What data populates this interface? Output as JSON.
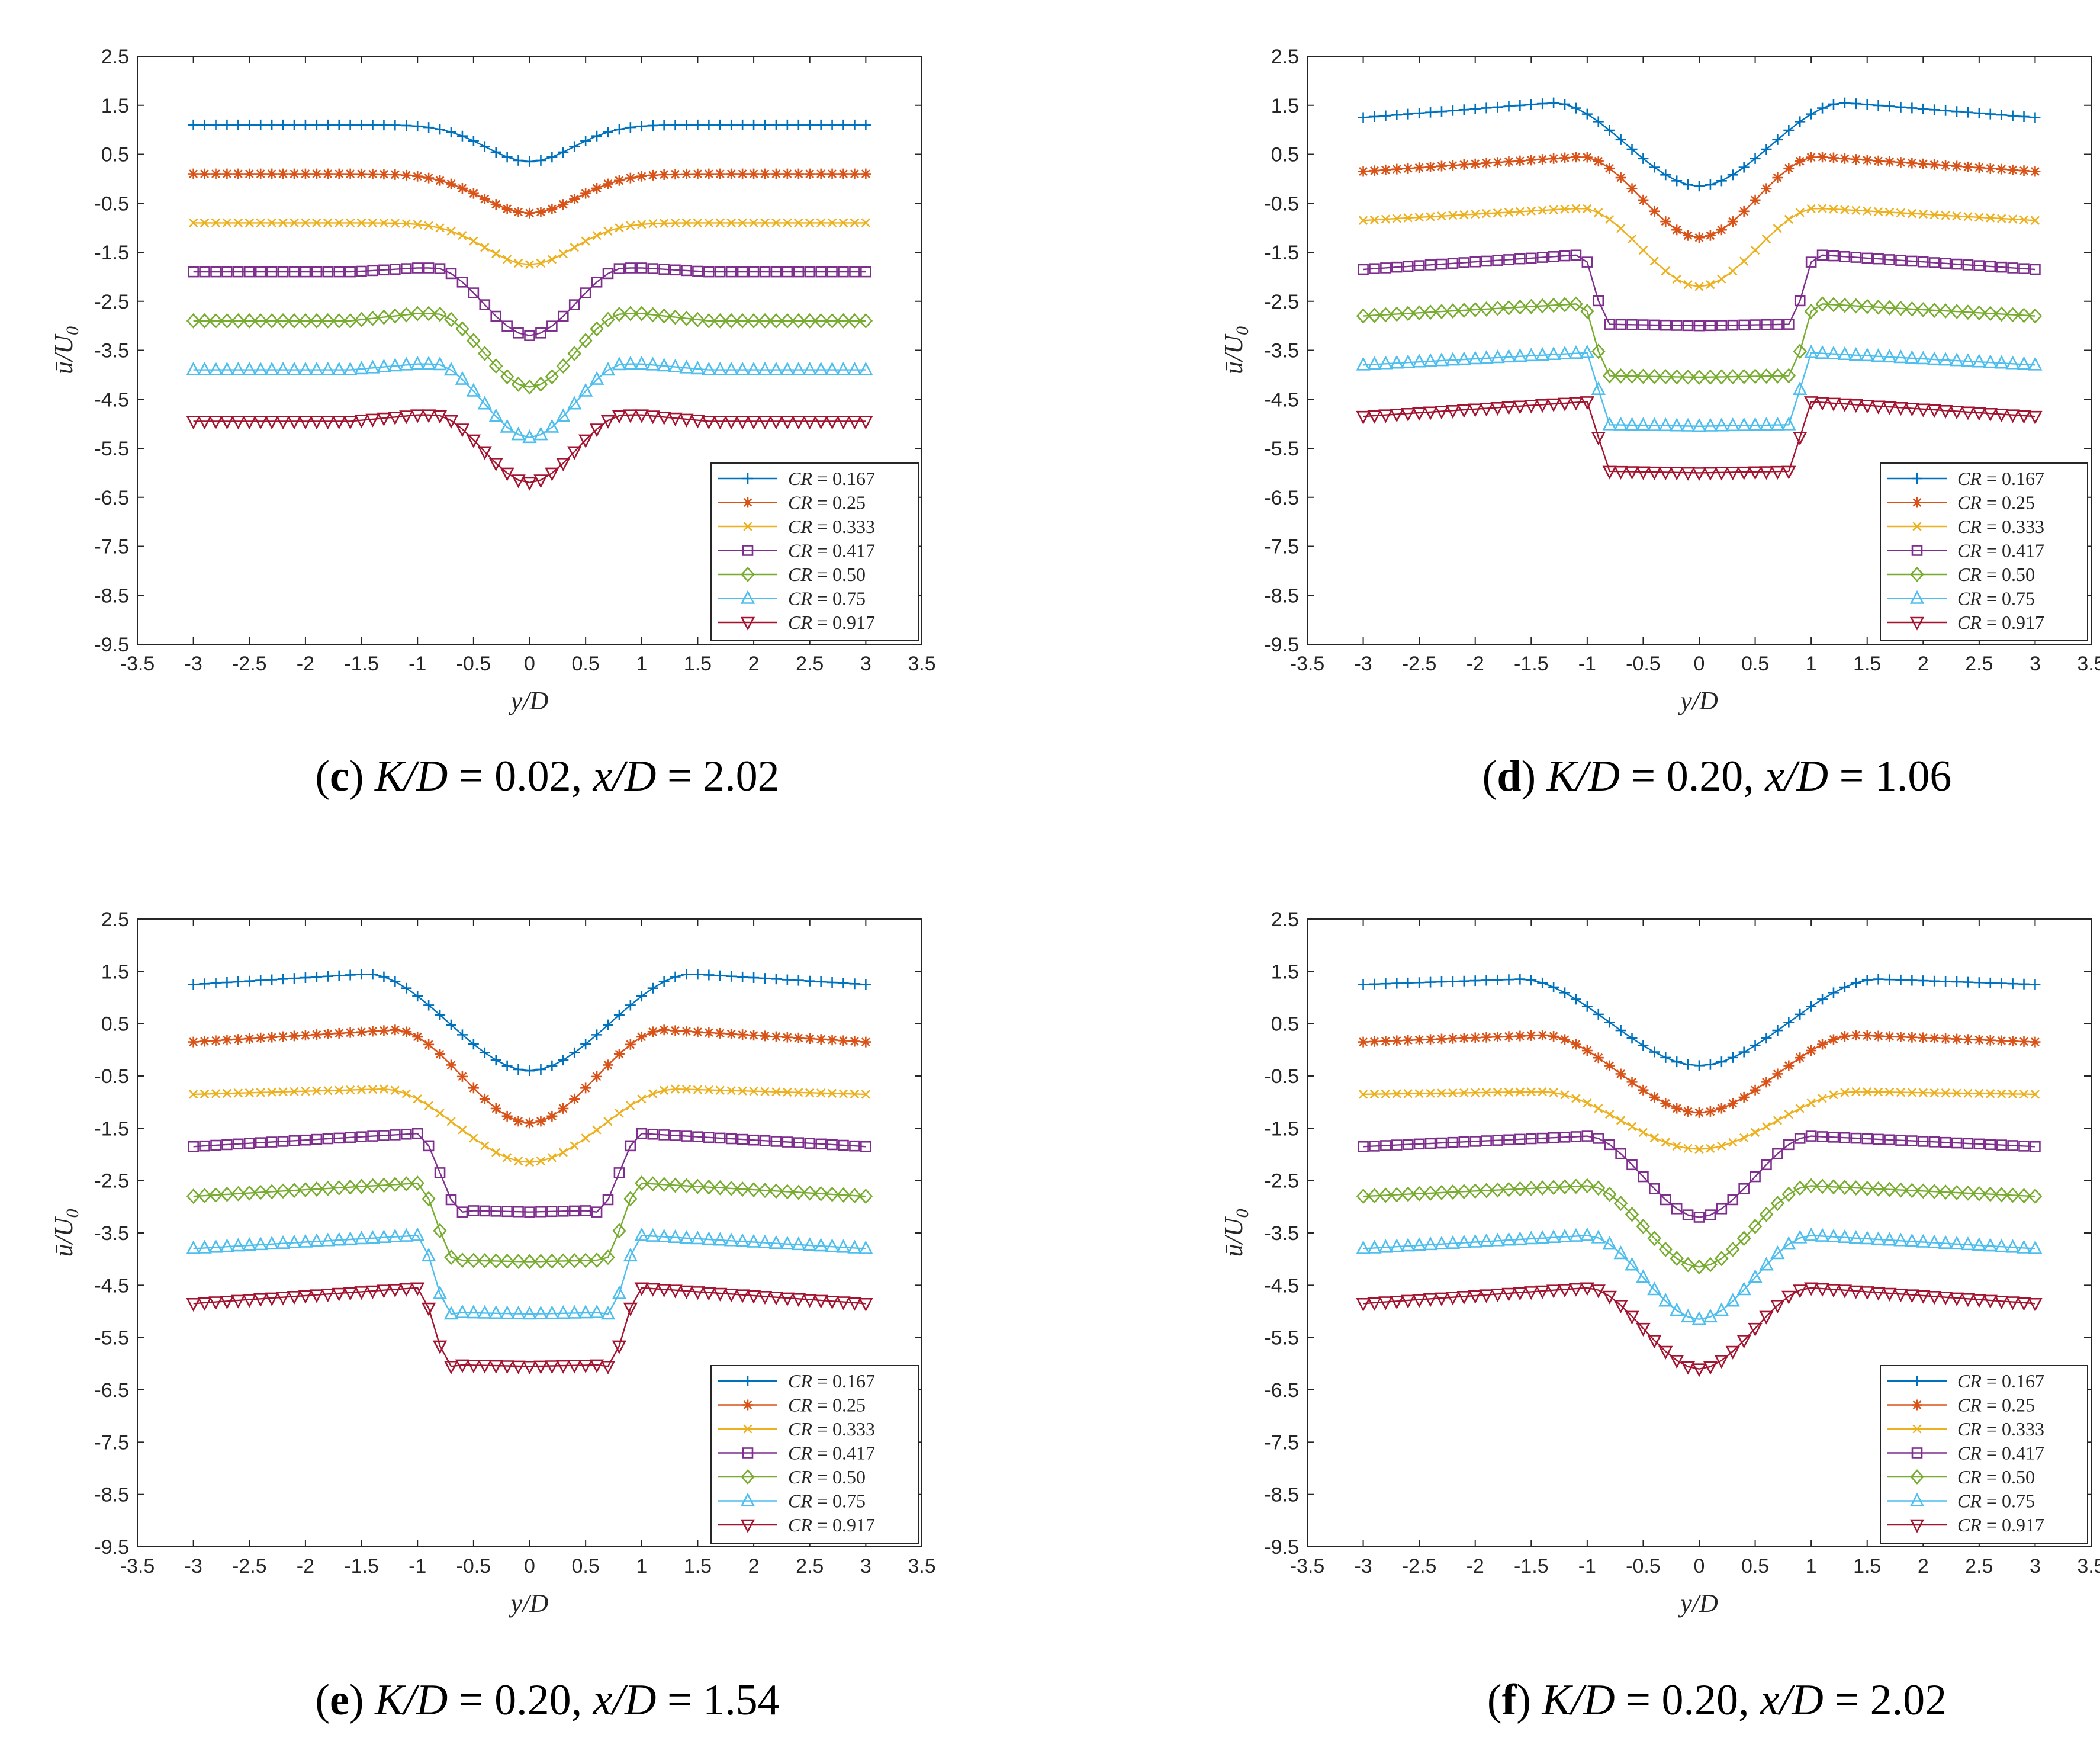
{
  "y_axis_label": {
    "main": "ū/",
    "var": "U",
    "sub": "0"
  },
  "colors": [
    "#0072BD",
    "#D95319",
    "#EDB120",
    "#7E2F8E",
    "#77AC30",
    "#4DBEEE",
    "#A2142F"
  ],
  "markers": [
    "plus",
    "asterisk",
    "cross",
    "square",
    "diamond",
    "triangle-up",
    "triangle-down"
  ],
  "legend": [
    "CR = 0.167",
    "CR = 0.25",
    "CR = 0.333",
    "CR = 0.417",
    "CR = 0.50",
    "CR = 0.75",
    "CR = 0.917"
  ],
  "chart_data": [
    {
      "type": "line",
      "panel": "c",
      "caption": {
        "letter": "c",
        "k_label": "K/D",
        "k_value": " = 0.02, ",
        "x_label": "x/D",
        "x_value": " = 2.02"
      },
      "xlabel": "y/D",
      "ylabel": "ū/U0",
      "xlim": [
        -3.5,
        3.5
      ],
      "ylim": [
        -9.5,
        2.5
      ],
      "xticks": [
        "-3.5",
        "-3",
        "-2.5",
        "-2",
        "-1.5",
        "-1",
        "-0.5",
        "0",
        "0.5",
        "1",
        "1.5",
        "2",
        "2.5",
        "3",
        "3.5"
      ],
      "yticks": [
        "2.5",
        "1.5",
        "0.5",
        "-0.5",
        "-1.5",
        "-2.5",
        "-3.5",
        "-4.5",
        "-5.5",
        "-6.5",
        "-7.5",
        "-8.5",
        "-9.5"
      ],
      "x_range": [
        -3.0,
        3.0
      ],
      "series": [
        {
          "name": "CR = 0.167",
          "shape": "gauss",
          "base": 1.1,
          "dip": 0.75,
          "width": 0.55,
          "slope": 0
        },
        {
          "name": "CR = 0.25",
          "shape": "gauss",
          "base": 0.1,
          "dip": 0.8,
          "width": 0.6,
          "slope": 0
        },
        {
          "name": "CR = 0.333",
          "shape": "gauss",
          "base": -0.9,
          "dip": 0.85,
          "width": 0.55,
          "slope": 0
        },
        {
          "name": "CR = 0.417",
          "shape": "vee",
          "base": -1.9,
          "edge": -1.82,
          "min": -3.2,
          "w": 0.85,
          "slope": 0
        },
        {
          "name": "CR = 0.50",
          "shape": "vee",
          "base": -2.9,
          "edge": -2.75,
          "min": -4.25,
          "w": 0.85,
          "slope": 0
        },
        {
          "name": "CR = 0.75",
          "shape": "vee",
          "base": -3.9,
          "edge": -3.78,
          "min": -5.28,
          "w": 0.85,
          "slope": 0
        },
        {
          "name": "CR = 0.917",
          "shape": "vee",
          "base": -4.95,
          "edge": -4.82,
          "min": -6.2,
          "w": 0.85,
          "slope": 0
        }
      ]
    },
    {
      "type": "line",
      "panel": "d",
      "caption": {
        "letter": "d",
        "k_label": "K/D",
        "k_value": " = 0.20, ",
        "x_label": "x/D",
        "x_value": " = 1.06"
      },
      "xlabel": "y/D",
      "ylabel": "ū/U0",
      "xlim": [
        -3.5,
        3.5
      ],
      "ylim": [
        -9.5,
        2.5
      ],
      "xticks": [
        "-3.5",
        "-3",
        "-2.5",
        "-2",
        "-1.5",
        "-1",
        "-0.5",
        "0",
        "0.5",
        "1",
        "1.5",
        "2",
        "2.5",
        "3",
        "3.5"
      ],
      "yticks": [
        "2.5",
        "1.5",
        "0.5",
        "-0.5",
        "-1.5",
        "-2.5",
        "-3.5",
        "-4.5",
        "-5.5",
        "-6.5",
        "-7.5",
        "-8.5",
        "-9.5"
      ],
      "x_range": [
        -3.0,
        3.0
      ],
      "series": [
        {
          "name": "CR = 0.167",
          "shape": "bowl",
          "outer": 1.25,
          "peak": 1.55,
          "peak_x": 1.3,
          "min": -0.15,
          "inner": 0.9
        },
        {
          "name": "CR = 0.25",
          "shape": "bowl",
          "outer": 0.15,
          "peak": 0.45,
          "peak_x": 1.05,
          "min": -1.2,
          "inner": 0.85
        },
        {
          "name": "CR = 0.333",
          "shape": "bowl",
          "outer": -0.85,
          "peak": -0.6,
          "peak_x": 1.05,
          "min": -2.2,
          "inner": 0.85
        },
        {
          "name": "CR = 0.417",
          "shape": "step",
          "outer": -1.85,
          "peak": -1.55,
          "peak_x": 1.05,
          "min": -3.0,
          "inner": 0.8
        },
        {
          "name": "CR = 0.50",
          "shape": "step",
          "outer": -2.8,
          "peak": -2.55,
          "peak_x": 1.05,
          "min": -4.05,
          "inner": 0.8
        },
        {
          "name": "CR = 0.75",
          "shape": "step",
          "outer": -3.8,
          "peak": -3.55,
          "peak_x": 1.0,
          "min": -5.05,
          "inner": 0.8
        },
        {
          "name": "CR = 0.917",
          "shape": "step",
          "outer": -4.85,
          "peak": -4.55,
          "peak_x": 1.0,
          "min": -6.0,
          "inner": 0.8
        }
      ]
    },
    {
      "type": "line",
      "panel": "e",
      "caption": {
        "letter": "e",
        "k_label": "K/D",
        "k_value": " = 0.20, ",
        "x_label": "x/D",
        "x_value": " = 1.54"
      },
      "xlabel": "y/D",
      "ylabel": "ū/U0",
      "xlim": [
        -3.5,
        3.5
      ],
      "ylim": [
        -9.5,
        2.5
      ],
      "xticks": [
        "-3.5",
        "-3",
        "-2.5",
        "-2",
        "-1.5",
        "-1",
        "-0.5",
        "0",
        "0.5",
        "1",
        "1.5",
        "2",
        "2.5",
        "3",
        "3.5"
      ],
      "yticks": [
        "2.5",
        "1.5",
        "0.5",
        "-0.5",
        "-1.5",
        "-2.5",
        "-3.5",
        "-4.5",
        "-5.5",
        "-6.5",
        "-7.5",
        "-8.5",
        "-9.5"
      ],
      "x_range": [
        -3.0,
        3.0
      ],
      "series": [
        {
          "name": "CR = 0.167",
          "shape": "bowl",
          "outer": 1.25,
          "peak": 1.45,
          "peak_x": 1.45,
          "min": -0.4,
          "inner": 1.2
        },
        {
          "name": "CR = 0.25",
          "shape": "bowl",
          "outer": 0.15,
          "peak": 0.38,
          "peak_x": 1.2,
          "min": -1.4,
          "inner": 1.05
        },
        {
          "name": "CR = 0.333",
          "shape": "bowl",
          "outer": -0.85,
          "peak": -0.75,
          "peak_x": 1.3,
          "min": -2.15,
          "inner": 1.1
        },
        {
          "name": "CR = 0.417",
          "shape": "step",
          "outer": -1.85,
          "peak": -1.6,
          "peak_x": 1.0,
          "min": -3.1,
          "inner": 0.6
        },
        {
          "name": "CR = 0.50",
          "shape": "step",
          "outer": -2.8,
          "peak": -2.55,
          "peak_x": 1.0,
          "min": -4.05,
          "inner": 0.65
        },
        {
          "name": "CR = 0.75",
          "shape": "step",
          "outer": -3.8,
          "peak": -3.55,
          "peak_x": 1.0,
          "min": -5.05,
          "inner": 0.7
        },
        {
          "name": "CR = 0.917",
          "shape": "step",
          "outer": -4.85,
          "peak": -4.55,
          "peak_x": 1.0,
          "min": -6.05,
          "inner": 0.7
        }
      ]
    },
    {
      "type": "line",
      "panel": "f",
      "caption": {
        "letter": "f",
        "k_label": "K/D",
        "k_value": " = 0.20, ",
        "x_label": "x/D",
        "x_value": " = 2.02"
      },
      "xlabel": "y/D",
      "ylabel": "ū/U0",
      "xlim": [
        -3.5,
        3.5
      ],
      "ylim": [
        -9.5,
        2.5
      ],
      "xticks": [
        "-3.5",
        "-3",
        "-2.5",
        "-2",
        "-1.5",
        "-1",
        "-0.5",
        "0",
        "0.5",
        "1",
        "1.5",
        "2",
        "2.5",
        "3",
        "3.5"
      ],
      "yticks": [
        "2.5",
        "1.5",
        "0.5",
        "-0.5",
        "-1.5",
        "-2.5",
        "-3.5",
        "-4.5",
        "-5.5",
        "-6.5",
        "-7.5",
        "-8.5",
        "-9.5"
      ],
      "x_range": [
        -3.0,
        3.0
      ],
      "series": [
        {
          "name": "CR = 0.167",
          "shape": "bowl",
          "outer": 1.25,
          "peak": 1.35,
          "peak_x": 1.6,
          "min": -0.3,
          "inner": 1.5
        },
        {
          "name": "CR = 0.25",
          "shape": "bowl",
          "outer": 0.15,
          "peak": 0.28,
          "peak_x": 1.4,
          "min": -1.2,
          "inner": 1.25
        },
        {
          "name": "CR = 0.333",
          "shape": "bowl",
          "outer": -0.85,
          "peak": -0.8,
          "peak_x": 1.4,
          "min": -1.9,
          "inner": 1.2
        },
        {
          "name": "CR = 0.417",
          "shape": "bowl",
          "outer": -1.85,
          "peak": -1.65,
          "peak_x": 1.0,
          "min": -3.2,
          "inner": 0.95
        },
        {
          "name": "CR = 0.50",
          "shape": "bowl",
          "outer": -2.8,
          "peak": -2.6,
          "peak_x": 1.0,
          "min": -4.15,
          "inner": 0.95
        },
        {
          "name": "CR = 0.75",
          "shape": "bowl",
          "outer": -3.8,
          "peak": -3.55,
          "peak_x": 1.0,
          "min": -5.15,
          "inner": 0.95
        },
        {
          "name": "CR = 0.917",
          "shape": "bowl",
          "outer": -4.85,
          "peak": -4.55,
          "peak_x": 1.0,
          "min": -6.1,
          "inner": 0.95
        }
      ]
    }
  ]
}
